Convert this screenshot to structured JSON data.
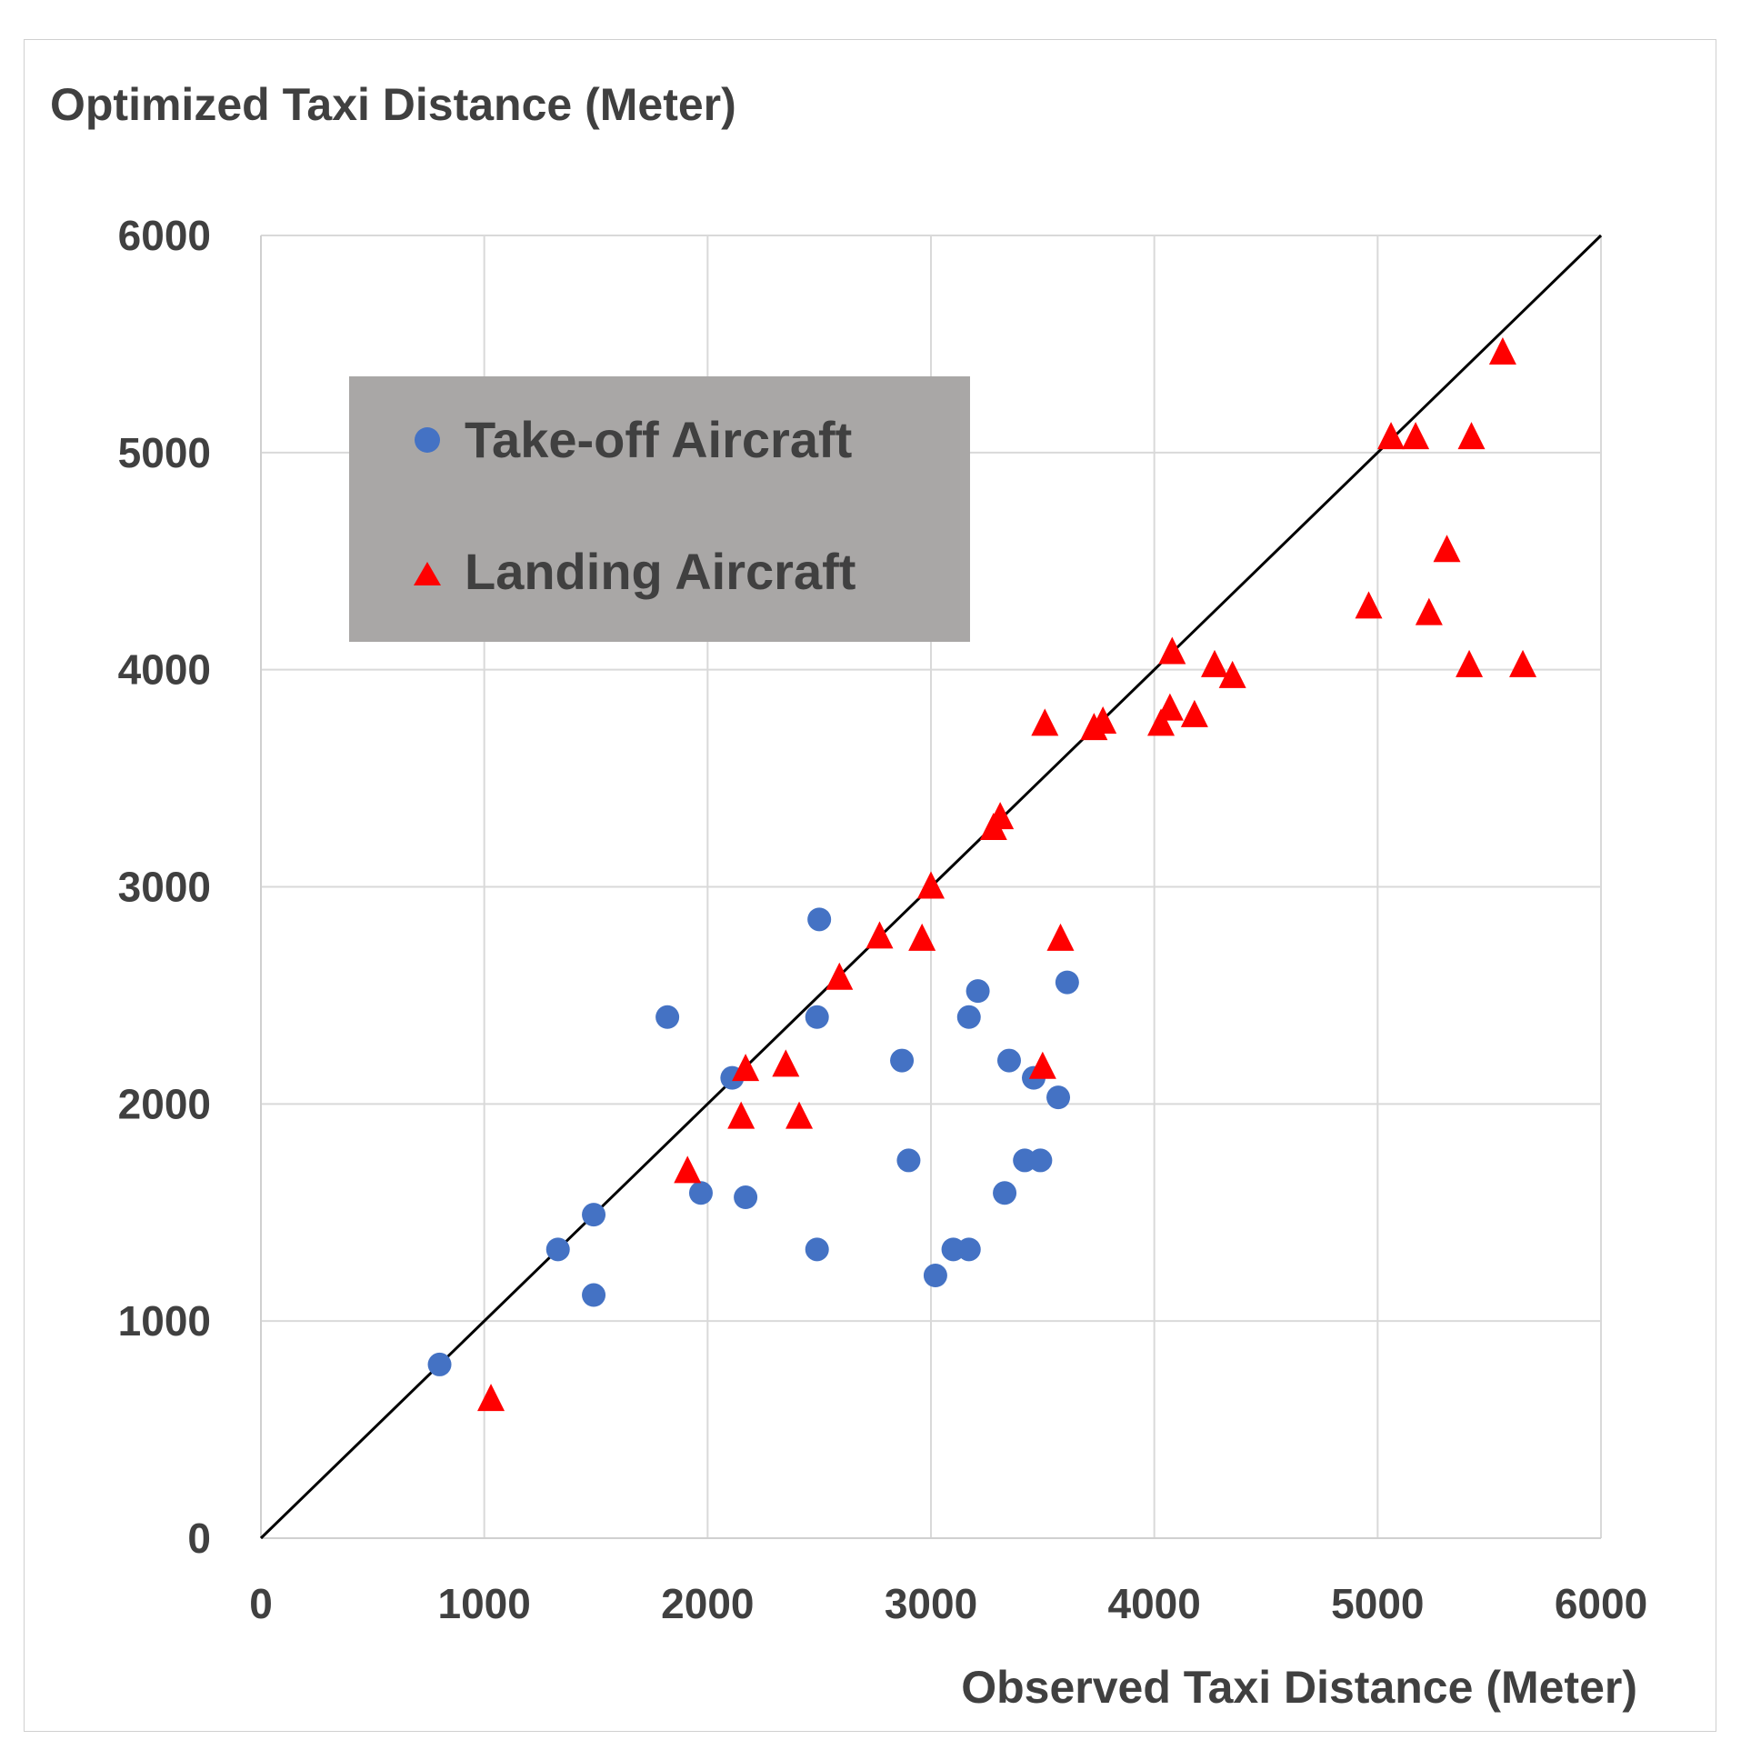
{
  "chart_data": {
    "type": "scatter",
    "title": "",
    "ylabel": "Optimized Taxi Distance (Meter)",
    "xlabel": "Observed Taxi Distance (Meter)",
    "xlim": [
      0,
      6000
    ],
    "ylim": [
      0,
      6000
    ],
    "x_ticks": [
      "0",
      "1000",
      "2000",
      "3000",
      "4000",
      "5000",
      "6000"
    ],
    "y_ticks": [
      "0",
      "1000",
      "2000",
      "3000",
      "4000",
      "5000",
      "6000"
    ],
    "grid": true,
    "legend_placement": "upper-left",
    "reference_line": {
      "name": "y = x",
      "from": [
        0,
        0
      ],
      "to": [
        6000,
        6000
      ],
      "color": "#000000"
    },
    "series": [
      {
        "name": "Take-off Aircraft",
        "marker": "circle",
        "color": "#4472C4",
        "points": [
          [
            800,
            800
          ],
          [
            1330,
            1330
          ],
          [
            1490,
            1490
          ],
          [
            1490,
            1120
          ],
          [
            1820,
            2400
          ],
          [
            1970,
            1590
          ],
          [
            2110,
            2120
          ],
          [
            2170,
            1570
          ],
          [
            2490,
            2400
          ],
          [
            2490,
            1330
          ],
          [
            2500,
            2850
          ],
          [
            2870,
            2200
          ],
          [
            2900,
            1740
          ],
          [
            3020,
            1210
          ],
          [
            3100,
            1330
          ],
          [
            3170,
            1330
          ],
          [
            3170,
            2400
          ],
          [
            3210,
            2520
          ],
          [
            3330,
            1590
          ],
          [
            3350,
            2200
          ],
          [
            3420,
            1740
          ],
          [
            3460,
            2120
          ],
          [
            3490,
            1740
          ],
          [
            3570,
            2030
          ],
          [
            3610,
            2560
          ]
        ]
      },
      {
        "name": "Landing Aircraft",
        "marker": "triangle",
        "color": "#FF0000",
        "points": [
          [
            1030,
            640
          ],
          [
            1910,
            1690
          ],
          [
            2150,
            1940
          ],
          [
            2170,
            2160
          ],
          [
            2350,
            2180
          ],
          [
            2410,
            1940
          ],
          [
            2590,
            2580
          ],
          [
            2770,
            2770
          ],
          [
            2960,
            2760
          ],
          [
            3000,
            3000
          ],
          [
            3280,
            3270
          ],
          [
            3310,
            3320
          ],
          [
            3500,
            2170
          ],
          [
            3510,
            3750
          ],
          [
            3580,
            2760
          ],
          [
            3730,
            3730
          ],
          [
            3770,
            3760
          ],
          [
            4030,
            3750
          ],
          [
            4070,
            3820
          ],
          [
            4080,
            4080
          ],
          [
            4180,
            3790
          ],
          [
            4270,
            4020
          ],
          [
            4350,
            3970
          ],
          [
            4960,
            4290
          ],
          [
            5060,
            5070
          ],
          [
            5170,
            5070
          ],
          [
            5230,
            4260
          ],
          [
            5310,
            4550
          ],
          [
            5410,
            4020
          ],
          [
            5420,
            5070
          ],
          [
            5560,
            5460
          ],
          [
            5650,
            4020
          ]
        ]
      }
    ]
  }
}
